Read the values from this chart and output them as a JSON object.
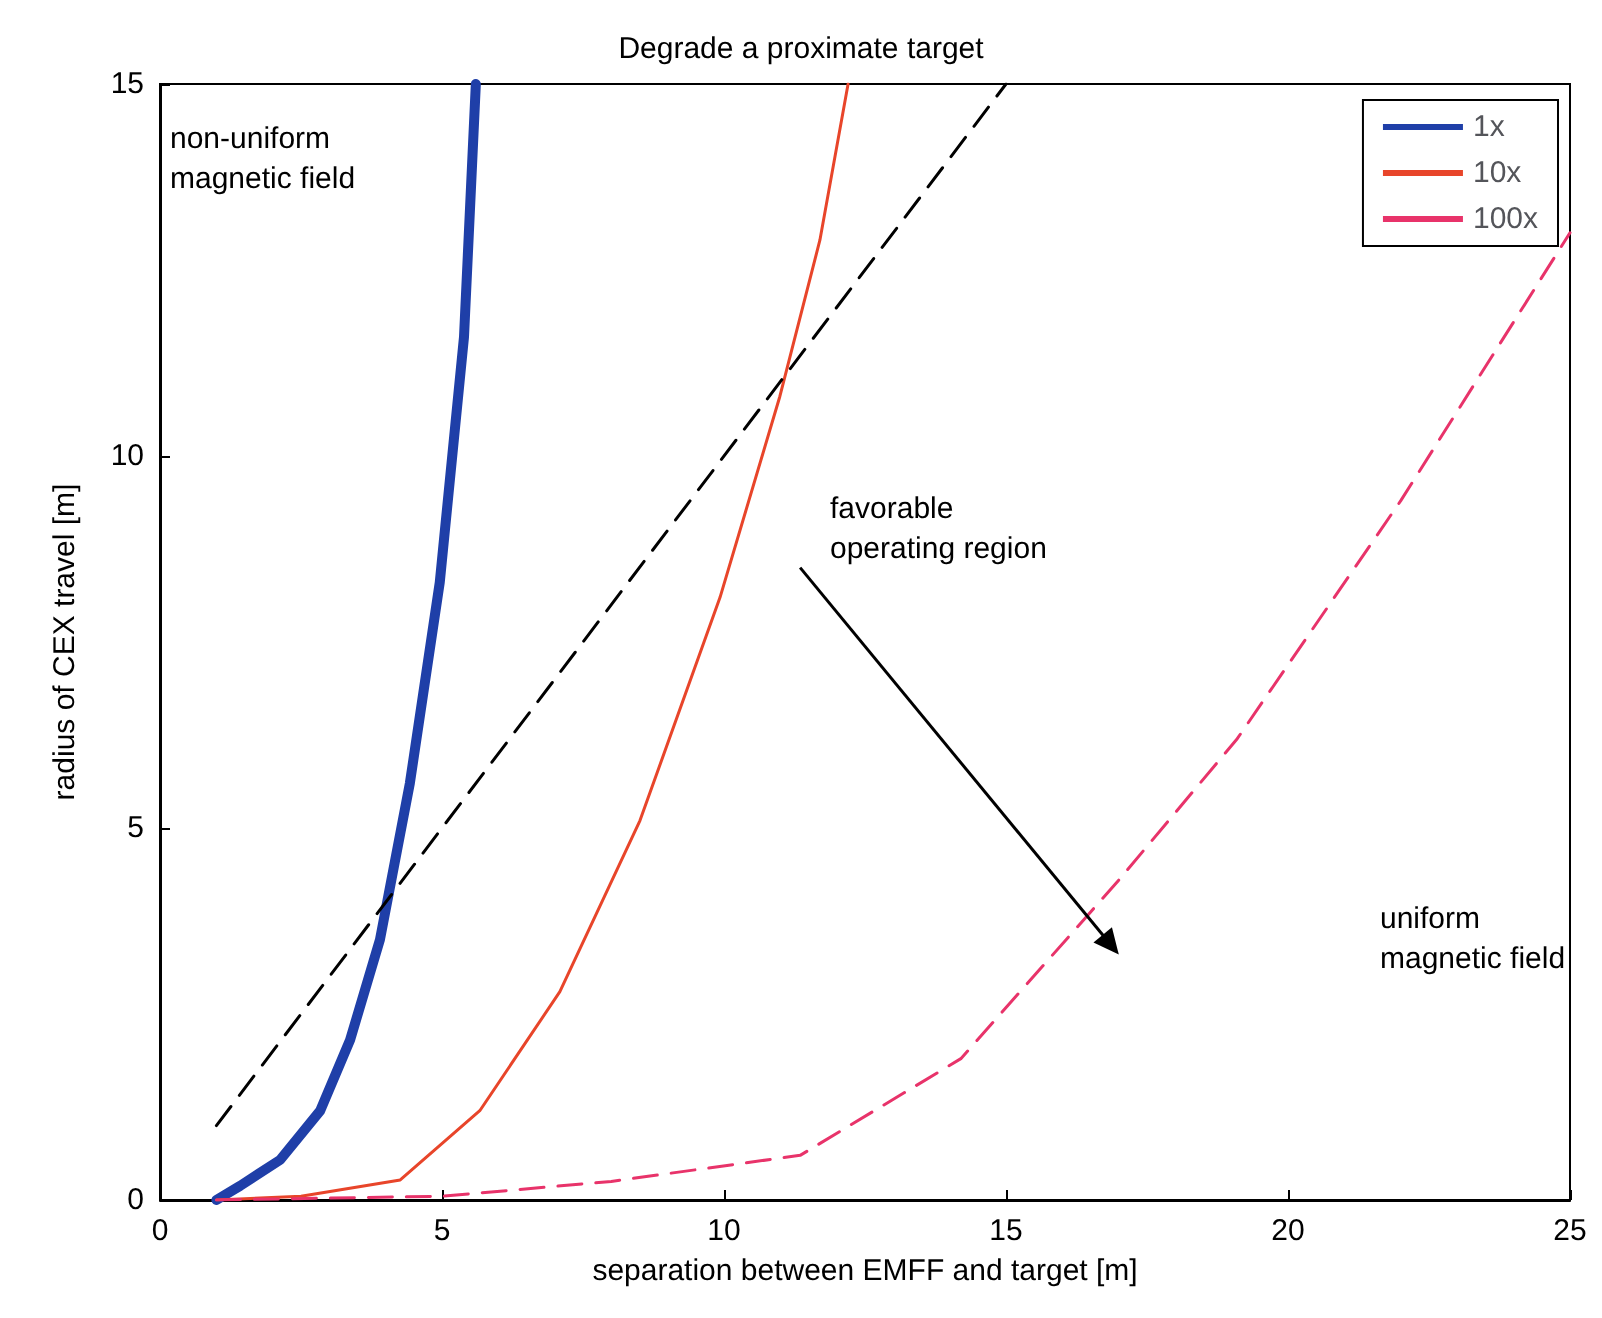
{
  "chart_data": {
    "type": "line",
    "title": "Degrade a proximate target",
    "xlabel": "separation between EMFF and target [m]",
    "ylabel": "radius of CEX travel [m]",
    "xlim": [
      0,
      25
    ],
    "xticks": [
      0,
      5,
      10,
      15,
      20,
      25
    ],
    "ylim": [
      0,
      15
    ],
    "yticks": [
      0,
      5,
      10,
      15
    ],
    "grid": false,
    "legend": "top right",
    "marker": "none",
    "series": [
      {
        "name": "1x",
        "color": "#1f3fa8",
        "line_style": "solid",
        "x": [
          1,
          1.42,
          2.13,
          2.84,
          3.37,
          3.9,
          4.43,
          4.96,
          5.39,
          5.6
        ],
        "values": [
          0,
          0.19,
          0.54,
          1.2,
          2.15,
          3.5,
          5.6,
          8.3,
          11.6,
          15
        ]
      },
      {
        "name": "10x",
        "color": "#e8452a",
        "line_style": "solid",
        "x": [
          1,
          2.5,
          4.26,
          5.67,
          7.09,
          8.51,
          9.93,
          10.99,
          11.7,
          12.2
        ],
        "values": [
          0,
          0.05,
          0.27,
          1.2,
          2.8,
          5.1,
          8.1,
          10.8,
          12.9,
          15
        ]
      },
      {
        "name": "100x",
        "color": "#e8336a",
        "line_style": "dashed",
        "x": [
          1,
          5,
          8,
          11.35,
          14.2,
          17,
          19.1,
          22,
          25
        ],
        "values": [
          0,
          0.05,
          0.25,
          0.6,
          1.9,
          4.3,
          6.2,
          9.4,
          13
        ]
      },
      {
        "color": "#000000",
        "line_style": "dashed",
        "x": [
          1,
          15
        ],
        "values": [
          1,
          15
        ]
      }
    ],
    "annotations": [
      "non-uniform magnetic field",
      "favorable operating region",
      "uniform magnetic field"
    ]
  }
}
